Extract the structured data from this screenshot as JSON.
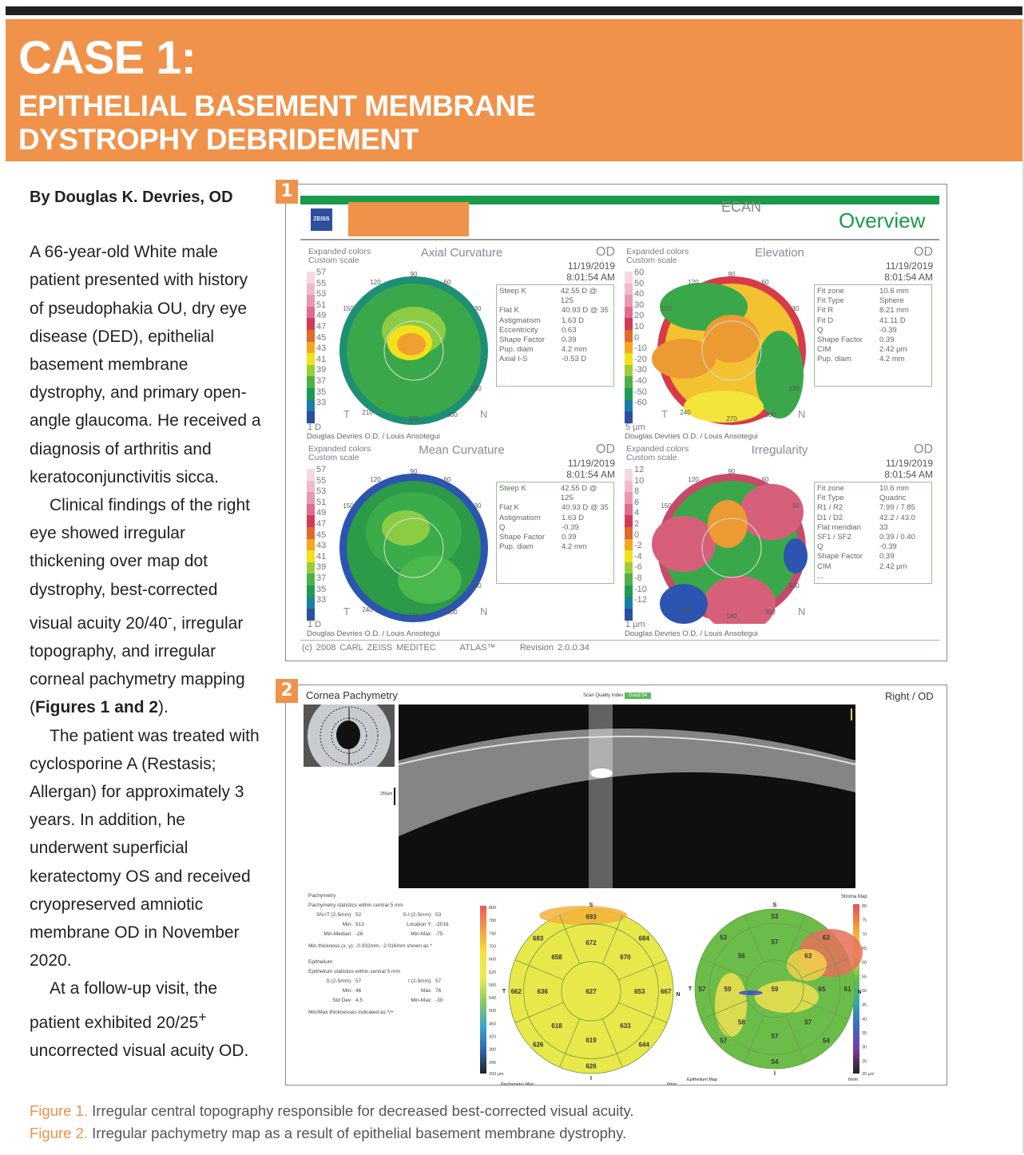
{
  "header": {
    "case": "CASE 1:",
    "subtitle": "EPITHELIAL BASEMENT MEMBRANE DYSTROPHY DEBRIDEMENT",
    "color": "#f0924a"
  },
  "article": {
    "byline": "By Douglas K. Devries, OD",
    "p1": {
      "a": "A 66-year-old White male patient presented with history of pseudophakia OU, dry eye disease (DED), epithelial basement membrane dystrophy, and primary open-angle glaucoma. He received a diagnosis of arthritis and keratoconjunctivitis sicca."
    },
    "p2": {
      "a": "Clinical findings of the right eye showed irregular thickening over map dot dystrophy, best-corrected visual acuity 20/40",
      "sup": "-",
      "b": ", irregular topography, and irregular corneal pachymetry mapping (",
      "bold": "Figures 1 and 2",
      "c": ")."
    },
    "p3": {
      "a": "The patient was treated with cyclosporine A (Restasis; Allergan) for approximately 3 years. In addition, he underwent superficial keratectomy OS and received cryopreserved amniotic membrane OD in November 2020."
    },
    "p4": {
      "a": "At a follow-up visit, the patient exhibited 20/25",
      "sup": "+",
      "b": " uncorrected visual acuity OD."
    }
  },
  "figure1": {
    "label": "1",
    "ecan": "ECAN",
    "overview": "Overview",
    "logo": "ZEISS",
    "footer": {
      "copyright": "(c) 2008 CARL ZEISS MEDITEC",
      "atlas": "ATLAS™",
      "revision": "Revision  2.0.0.34"
    },
    "panels": [
      {
        "title": "Axial Curvature",
        "hdr1": "Expanded colors",
        "hdr2": "Custom scale",
        "eye": "OD",
        "date": "11/19/2019",
        "time": "8:01:54 AM",
        "unit": "1 D",
        "signature": "Douglas Devries O.D. / Louis Ansotegui",
        "ticks": [
          "57",
          "55",
          "53",
          "51",
          "49",
          "47",
          "45",
          "43",
          "41",
          "39",
          "37",
          "35",
          "33"
        ],
        "table": [
          [
            "Steep K",
            "42.55 D @ 125"
          ],
          [
            "Flat K",
            "40.93 D @ 35"
          ],
          [
            "Astigmatism",
            "1.63 D"
          ],
          [
            "Eccentricity",
            "0.63"
          ],
          [
            "Shape Factor",
            "0.39"
          ],
          [
            "Pup. diam",
            "4.2 mm"
          ],
          [
            "Axial I-S",
            "-0.53 D"
          ]
        ],
        "angles": [
          "90",
          "120",
          "60",
          "150",
          "30",
          "330",
          "270",
          "300",
          "210"
        ],
        "t": "T",
        "n": "N"
      },
      {
        "title": "Elevation",
        "hdr1": "Expanded colors",
        "hdr2": "Custom scale",
        "eye": "OD",
        "date": "11/19/2019",
        "time": "8:01:54 AM",
        "unit": "5 µm",
        "signature": "Douglas Devries O.D. / Louis Ansotegui",
        "ticks": [
          "60",
          "50",
          "40",
          "30",
          "20",
          "10",
          "0",
          "-10",
          "-20",
          "-30",
          "-40",
          "-50",
          "-60"
        ],
        "table": [
          [
            "Fit zone",
            "10.6 mm"
          ],
          [
            "Fit Type",
            "Sphere"
          ],
          [
            "Fit R",
            "8.21 mm"
          ],
          [
            "Fit D",
            "41.11 D"
          ],
          [
            "Q",
            "-0.39"
          ],
          [
            "Shape Factor",
            "0.39"
          ],
          [
            "CIM",
            "2.42 µm"
          ],
          [
            "Pup. diam",
            "4.2 mm"
          ]
        ],
        "angles": [
          "90",
          "120",
          "60",
          "150",
          "30",
          "330",
          "270",
          "300",
          "240"
        ],
        "t": "T",
        "n": "N"
      },
      {
        "title": "Mean Curvature",
        "hdr1": "Expanded colors",
        "hdr2": "Custom scale",
        "eye": "OD",
        "date": "11/19/2019",
        "time": "8:01:54 AM",
        "unit": "1 D",
        "signature": "Douglas Devries O.D. / Louis Ansotegui",
        "ticks": [
          "57",
          "55",
          "53",
          "51",
          "49",
          "47",
          "45",
          "43",
          "41",
          "39",
          "37",
          "35",
          "33"
        ],
        "table": [
          [
            "Steep K",
            "42.55 D @ 125"
          ],
          [
            "Flat K",
            "40.93 D @ 35"
          ],
          [
            "Astigmatism",
            "1.63 D"
          ],
          [
            "Q",
            "-0.39"
          ],
          [
            "Shape Factor",
            "0.39"
          ],
          [
            "Pup. diam",
            "4.2 mm"
          ]
        ],
        "angles": [
          "90",
          "120",
          "60",
          "150",
          "30",
          "330",
          "270",
          "300",
          "240"
        ],
        "t": "T",
        "n": "N"
      },
      {
        "title": "Irregularity",
        "hdr1": "Expanded colors",
        "hdr2": "Custom scale",
        "eye": "OD",
        "date": "11/19/2019",
        "time": "8:01:54 AM",
        "unit": "1 µm",
        "signature": "Douglas Devries O.D. / Louis Ansotegui",
        "ticks": [
          "12",
          "10",
          "8",
          "6",
          "4",
          "2",
          "0",
          "-2",
          "-4",
          "-6",
          "-8",
          "-10",
          "-12"
        ],
        "table": [
          [
            "Fit zone",
            "10.6 mm"
          ],
          [
            "Fit Type",
            "Quadric"
          ],
          [
            "R1 / R2",
            "7.99 / 7.85"
          ],
          [
            "D1 / D2",
            "42.2 / 43.0"
          ],
          [
            "Flat meridian",
            "33"
          ],
          [
            "SF1 / SF2",
            "0.39 / 0.40"
          ],
          [
            "Q",
            "-0.39"
          ],
          [
            "Shape Factor",
            "0.39"
          ],
          [
            "CIM",
            "2.42 µm"
          ],
          [
            "...",
            ""
          ]
        ],
        "angles": [
          "90",
          "120",
          "60",
          "150",
          "30",
          "330",
          "180",
          "300",
          "240"
        ],
        "t": "T",
        "n": "N"
      }
    ]
  },
  "figure2": {
    "label": "2",
    "title": "Cornea Pachymetry",
    "eye": "Right / OD",
    "scan_quality": {
      "label": "Scan Quality Index",
      "value": "Good  54",
      "color": "#5cb85c"
    },
    "scale_bar": "250µm",
    "pachymetry_stats": {
      "heading": "Pachymetry",
      "sub": "Pachymetry statistics within central 5 mm",
      "rows": [
        [
          "SN-IT (2-5mm):",
          "52",
          "S-I (2-5mm):",
          "53"
        ],
        [
          "Min:",
          "513",
          "Location Y:",
          "-2016"
        ],
        [
          "Min-Median:",
          "-26",
          "Min-Max:",
          "-75"
        ]
      ],
      "note": "Min thickness (x, y): -0.932mm, -2.016mm shown as *"
    },
    "epithelium_stats": {
      "heading": "Epithelium",
      "sub": "Epithelium statistics within central 5 mm",
      "rows": [
        [
          "S (2-5mm):",
          "57",
          "I (2-5mm):",
          "57"
        ],
        [
          "Min:",
          "46",
          "Max:",
          "76"
        ],
        [
          "Std Dev:",
          "4.5",
          "Min-Max:",
          "-30"
        ]
      ],
      "note": "Min/Max thicknesses indicated as */+"
    },
    "pachymetry_map": {
      "label": "Pachymetry Map",
      "size": "6mm",
      "unit": "200 µm",
      "scale": [
        "800",
        "780",
        "740",
        "700",
        "660",
        "620",
        "580",
        "540",
        "500",
        "460",
        "420",
        "380",
        "340"
      ],
      "center": "627",
      "inner": [
        "672",
        "670",
        "653",
        "633",
        "619",
        "618",
        "636",
        "658"
      ],
      "outer": [
        "693",
        "684",
        "667",
        "644",
        "626",
        "626",
        "662",
        "683"
      ],
      "dirs": {
        "s": "S",
        "n": "N",
        "i": "I",
        "t": "T"
      }
    },
    "epithelium_map": {
      "label": "Epithelium Map",
      "size": "6mm",
      "stroma": "Stroma Map",
      "unit": "20 µm",
      "scale": [
        "80",
        "75",
        "70",
        "65",
        "60",
        "55",
        "50",
        "45",
        "40",
        "35",
        "30",
        "25"
      ],
      "center": "59",
      "inner": [
        "57",
        "63",
        "65",
        "57",
        "57",
        "58",
        "59",
        "56"
      ],
      "outer": [
        "53",
        "63",
        "61",
        "54",
        "54",
        "57",
        "57",
        "53"
      ],
      "dirs": {
        "s": "S",
        "n": "N",
        "i": "I",
        "t": "T"
      }
    }
  },
  "captions": [
    {
      "label": "Figure 1.",
      "text": " Irregular central topography responsible for decreased best-corrected visual acuity."
    },
    {
      "label": "Figure 2.",
      "text": " Irregular pachymetry map as a result of epithelial basement membrane dystrophy."
    }
  ]
}
